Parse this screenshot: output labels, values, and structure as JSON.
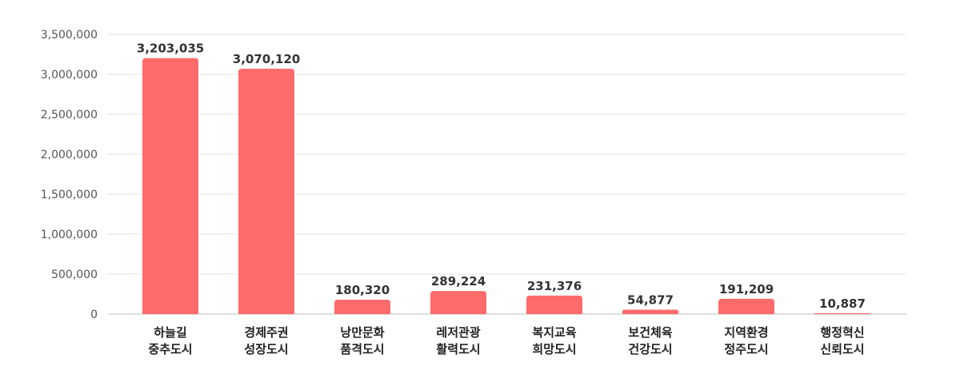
{
  "chart_data": {
    "type": "bar",
    "title": "",
    "xlabel": "",
    "ylabel": "",
    "ylim": [
      0,
      3500000
    ],
    "yticks": [
      0,
      500000,
      1000000,
      1500000,
      2000000,
      2500000,
      3000000,
      3500000
    ],
    "ytick_labels": [
      "0",
      "500,000",
      "1,000,000",
      "1,500,000",
      "2,000,000",
      "2,500,000",
      "3,000,000",
      "3,500,000"
    ],
    "grid": true,
    "legend": "none",
    "bar_color": "#ff6b6b",
    "categories": [
      [
        "하늘길",
        "중추도시"
      ],
      [
        "경제주권",
        "성장도시"
      ],
      [
        "낭만문화",
        "품격도시"
      ],
      [
        "레저관광",
        "활력도시"
      ],
      [
        "복지교육",
        "희망도시"
      ],
      [
        "보건체육",
        "건강도시"
      ],
      [
        "지역환경",
        "정주도시"
      ],
      [
        "행정혁신",
        "신뢰도시"
      ]
    ],
    "values": [
      3203035,
      3070120,
      180320,
      289224,
      231376,
      54877,
      191209,
      10887
    ],
    "value_labels": [
      "3,203,035",
      "3,070,120",
      "180,320",
      "289,224",
      "231,376",
      "54,877",
      "191,209",
      "10,887"
    ]
  }
}
